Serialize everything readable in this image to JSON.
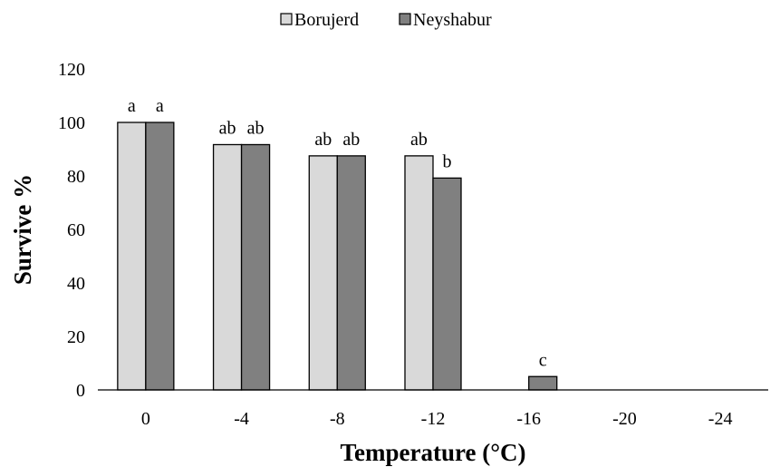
{
  "chart_data": {
    "type": "bar",
    "title": "",
    "xlabel": "Temperature (°C)",
    "ylabel": "Survive %",
    "ylim": [
      0,
      120
    ],
    "yticks": [
      0,
      20,
      40,
      60,
      80,
      100,
      120
    ],
    "grid": false,
    "legend_position": "top-center",
    "categories": [
      "0",
      "-4",
      "-8",
      "-12",
      "-16",
      "-20",
      "-24"
    ],
    "series": [
      {
        "name": "Borujerd",
        "color": "#d9d9d9",
        "values": [
          100,
          91.7,
          87.5,
          87.5,
          0,
          0,
          0
        ],
        "labels": [
          "a",
          "ab",
          "ab",
          "ab",
          "",
          "",
          ""
        ]
      },
      {
        "name": "Neyshabur",
        "color": "#808080",
        "values": [
          100,
          91.7,
          87.5,
          79.2,
          5,
          0,
          0
        ],
        "labels": [
          "a",
          "ab",
          "ab",
          "b",
          "c",
          "",
          ""
        ]
      }
    ]
  }
}
